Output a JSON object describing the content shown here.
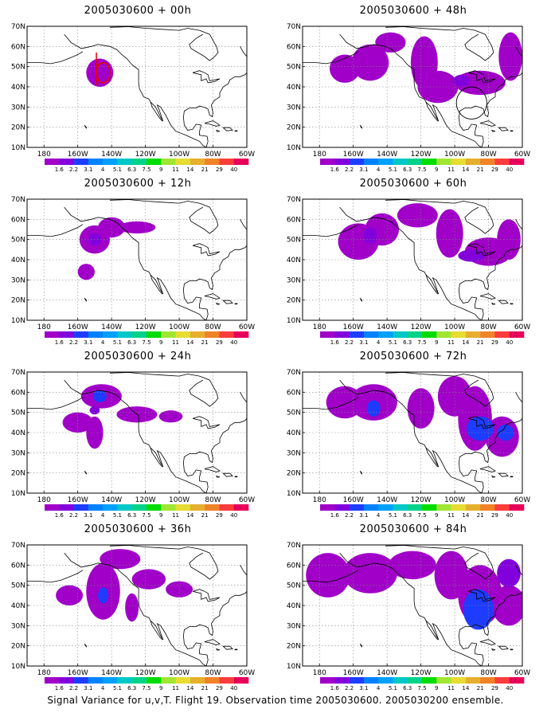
{
  "caption": "Signal Variance for u,v,T. Flight 19. Observation time 2005030600. 2005030200 ensemble.",
  "lat_labels": [
    "70N",
    "60N",
    "50N",
    "40N",
    "30N",
    "20N",
    "10N"
  ],
  "lon_labels": [
    "180",
    "160W",
    "140W",
    "120W",
    "100W",
    "80W",
    "60W"
  ],
  "colorbar": {
    "labels": [
      "1.6",
      "2.2",
      "3.1",
      "4",
      "5.1",
      "6.3",
      "7.5",
      "9",
      "11",
      "14",
      "21",
      "29",
      "40"
    ],
    "colors": [
      "#a000c8",
      "#8200dc",
      "#1e3cff",
      "#0082ff",
      "#00a0ff",
      "#00c8c8",
      "#00d28c",
      "#00dc00",
      "#a0e632",
      "#e6dc32",
      "#e6af2d",
      "#f08228",
      "#fa3c3c",
      "#e6005a"
    ]
  },
  "panels": [
    {
      "title": "2005030600 + 00h"
    },
    {
      "title": "2005030600 + 48h"
    },
    {
      "title": "2005030600 + 12h"
    },
    {
      "title": "2005030600 + 60h"
    },
    {
      "title": "2005030600 + 24h"
    },
    {
      "title": "2005030600 + 72h"
    },
    {
      "title": "2005030600 + 36h"
    },
    {
      "title": "2005030600 + 84h"
    }
  ]
}
